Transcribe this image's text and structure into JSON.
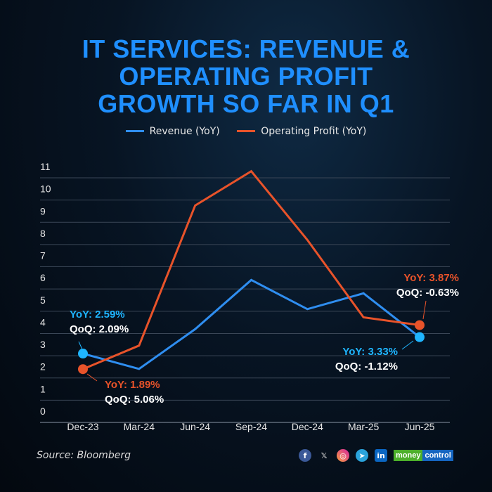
{
  "title_lines": [
    "IT SERVICES: REVENUE &",
    "OPERATING PROFIT",
    "GROWTH SO FAR IN Q1"
  ],
  "source": "Source: Bloomberg",
  "social": {
    "icons": [
      "facebook-icon",
      "x-icon",
      "instagram-icon",
      "telegram-icon",
      "linkedin-icon"
    ],
    "brand_a": "money",
    "brand_b": "control"
  },
  "colors": {
    "revenue": "#2f8ef0",
    "op_profit": "#e8532a",
    "title": "#1f8fff",
    "rev_label": "#1fb5ff",
    "marker_rev": "#1fb5ff"
  },
  "chart_data": {
    "type": "line",
    "categories": [
      "Dec-23",
      "Mar-24",
      "Jun-24",
      "Sep-24",
      "Dec-24",
      "Mar-25",
      "Jun-25"
    ],
    "ylim": [
      0,
      11
    ],
    "yticks": [
      "0",
      "1",
      "2",
      "3",
      "4",
      "5",
      "6",
      "7",
      "8",
      "9",
      "10",
      "11"
    ],
    "grid": true,
    "legend_placement": "top",
    "series": [
      {
        "name": "Revenue (YoY)",
        "values": [
          2.59,
          1.9,
          3.69,
          5.9,
          4.59,
          5.3,
          3.33
        ]
      },
      {
        "name": "Operating Profit (YoY)",
        "values": [
          1.89,
          2.95,
          9.25,
          10.79,
          7.7,
          4.22,
          3.87
        ]
      }
    ],
    "annotations": {
      "rev_start": {
        "yoy": "YoY: 2.59%",
        "qoq": "QoQ: 2.09%"
      },
      "op_start": {
        "yoy": "YoY: 1.89%",
        "qoq": "QoQ: 5.06%"
      },
      "rev_end": {
        "yoy": "YoY: 3.33%",
        "qoq": "QoQ: -1.12%"
      },
      "op_end": {
        "yoy": "YoY: 3.87%",
        "qoq": "QoQ: -0.63%"
      }
    }
  }
}
